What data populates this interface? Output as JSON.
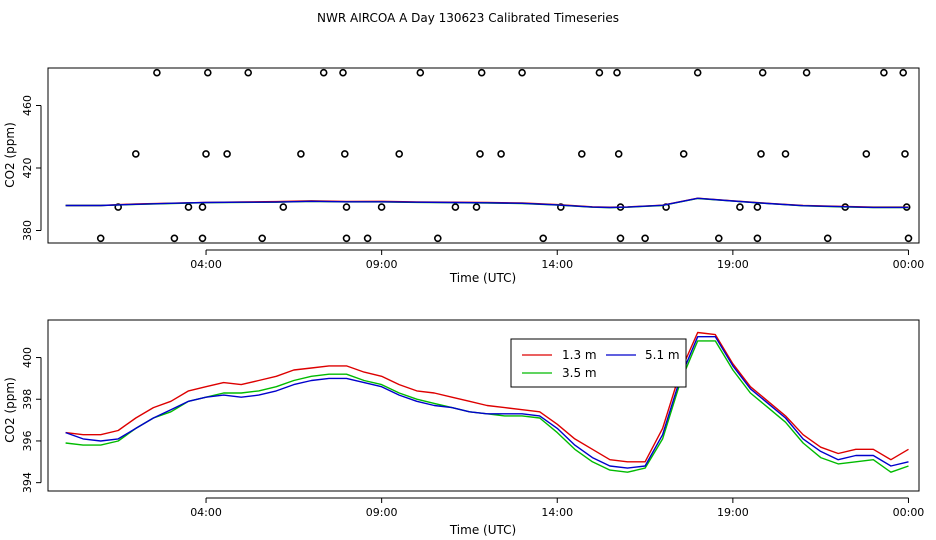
{
  "title": "NWR AIRCOA A  Day 130623  Calibrated Timeseries",
  "colors": {
    "s1": "#dd0000",
    "s2": "#00bb00",
    "s3": "#0000cc",
    "axis": "#000000"
  },
  "chart_data": [
    {
      "type": "scatter",
      "ylabel": "CO2 (ppm)",
      "xlabel": "Time (UTC)",
      "xlim": [
        -0.5,
        24.3
      ],
      "ylim": [
        372,
        484
      ],
      "xticks": [
        4,
        9,
        14,
        19,
        24
      ],
      "xtick_labels": [
        "04:00",
        "09:00",
        "14:00",
        "19:00",
        "00:00"
      ],
      "yticks": [
        380,
        420,
        460
      ],
      "ytick_labels": [
        "380",
        "420",
        "460"
      ],
      "points": [
        [
          1.0,
          375
        ],
        [
          1.5,
          395
        ],
        [
          2.0,
          429
        ],
        [
          2.6,
          481
        ],
        [
          3.1,
          375
        ],
        [
          3.5,
          395
        ],
        [
          3.9,
          375
        ],
        [
          3.9,
          395
        ],
        [
          4.0,
          429
        ],
        [
          4.05,
          481
        ],
        [
          4.6,
          429
        ],
        [
          5.2,
          481
        ],
        [
          5.6,
          375
        ],
        [
          6.2,
          395
        ],
        [
          6.7,
          429
        ],
        [
          7.35,
          481
        ],
        [
          7.9,
          481
        ],
        [
          7.95,
          429
        ],
        [
          8.0,
          395
        ],
        [
          8.0,
          375
        ],
        [
          8.6,
          375
        ],
        [
          9.0,
          395
        ],
        [
          9.5,
          429
        ],
        [
          10.1,
          481
        ],
        [
          10.6,
          375
        ],
        [
          11.1,
          395
        ],
        [
          11.7,
          395
        ],
        [
          11.8,
          429
        ],
        [
          11.85,
          481
        ],
        [
          12.4,
          429
        ],
        [
          13.0,
          481
        ],
        [
          13.6,
          375
        ],
        [
          14.1,
          395
        ],
        [
          14.7,
          429
        ],
        [
          15.2,
          481
        ],
        [
          15.7,
          481
        ],
        [
          15.75,
          429
        ],
        [
          15.8,
          395
        ],
        [
          15.8,
          375
        ],
        [
          16.5,
          375
        ],
        [
          17.1,
          395
        ],
        [
          17.6,
          429
        ],
        [
          18.0,
          481
        ],
        [
          18.6,
          375
        ],
        [
          19.2,
          395
        ],
        [
          19.7,
          375
        ],
        [
          19.7,
          395
        ],
        [
          19.8,
          429
        ],
        [
          19.85,
          481
        ],
        [
          20.5,
          429
        ],
        [
          21.1,
          481
        ],
        [
          21.7,
          375
        ],
        [
          22.2,
          395
        ],
        [
          22.8,
          429
        ],
        [
          23.3,
          481
        ],
        [
          23.85,
          481
        ],
        [
          23.9,
          429
        ],
        [
          23.95,
          395
        ],
        [
          24.0,
          375
        ]
      ],
      "series": [
        {
          "name": "1.3 m",
          "color": "#dd0000",
          "x": [
            0,
            1,
            2,
            3,
            4,
            5,
            6,
            7,
            8,
            9,
            10,
            11,
            12,
            13,
            14,
            15,
            15.5,
            16,
            17,
            18,
            19,
            20,
            21,
            22,
            23,
            24
          ],
          "y": [
            396,
            396,
            397,
            397.5,
            398,
            398.3,
            398.5,
            399,
            398.6,
            398.7,
            398.3,
            398.1,
            397.9,
            397.6,
            396.6,
            395.2,
            394.9,
            395.1,
            396.2,
            400.7,
            399,
            397.4,
            396,
            395.5,
            395,
            395
          ]
        },
        {
          "name": "3.5 m",
          "color": "#00bb00",
          "x": [
            0,
            1,
            2,
            3,
            4,
            5,
            6,
            7,
            8,
            9,
            10,
            11,
            12,
            13,
            14,
            15,
            15.5,
            16,
            17,
            18,
            19,
            20,
            21,
            22,
            23,
            24
          ],
          "y": [
            396,
            396,
            396.7,
            397.3,
            397.8,
            398,
            398.1,
            398.6,
            398.3,
            398.3,
            398,
            397.8,
            397.6,
            397.3,
            396.3,
            394.9,
            394.6,
            394.9,
            396,
            400.5,
            398.8,
            397.2,
            395.8,
            395.2,
            394.7,
            394.7
          ]
        },
        {
          "name": "5.1 m",
          "color": "#0000cc",
          "x": [
            0,
            1,
            2,
            3,
            4,
            5,
            6,
            7,
            8,
            9,
            10,
            11,
            12,
            13,
            14,
            15,
            15.5,
            16,
            17,
            18,
            19,
            20,
            21,
            22,
            23,
            24
          ],
          "y": [
            396,
            396,
            396.8,
            397.4,
            397.9,
            398.1,
            398.2,
            398.7,
            398.4,
            398.4,
            398.1,
            397.9,
            397.7,
            397.4,
            396.4,
            395,
            394.7,
            395,
            396.1,
            400.6,
            398.9,
            397.3,
            395.9,
            395.3,
            394.8,
            394.8
          ]
        }
      ]
    },
    {
      "type": "line",
      "ylabel": "CO2 (ppm)",
      "xlabel": "Time (UTC)",
      "xlim": [
        -0.5,
        24.3
      ],
      "ylim": [
        393.6,
        401.8
      ],
      "xticks": [
        4,
        9,
        14,
        19,
        24
      ],
      "xtick_labels": [
        "04:00",
        "09:00",
        "14:00",
        "19:00",
        "00:00"
      ],
      "yticks": [
        394,
        396,
        398,
        400
      ],
      "ytick_labels": [
        "394",
        "396",
        "398",
        "400"
      ],
      "legend": "top-center",
      "series": [
        {
          "name": "1.3 m",
          "color": "#dd0000",
          "x": [
            0,
            0.5,
            1,
            1.5,
            2,
            2.5,
            3,
            3.5,
            4,
            4.5,
            5,
            5.5,
            6,
            6.5,
            7,
            7.5,
            8,
            8.5,
            9,
            9.5,
            10,
            10.5,
            11,
            11.5,
            12,
            12.5,
            13,
            13.5,
            14,
            14.5,
            15,
            15.5,
            16,
            16.5,
            17,
            17.5,
            18,
            18.5,
            19,
            19.5,
            20,
            20.5,
            21,
            21.5,
            22,
            22.5,
            23,
            23.5,
            24
          ],
          "y": [
            396.4,
            396.3,
            396.3,
            396.5,
            397.1,
            397.6,
            397.9,
            398.4,
            398.6,
            398.8,
            398.7,
            398.9,
            399.1,
            399.4,
            399.5,
            399.6,
            399.6,
            399.3,
            399.1,
            398.7,
            398.4,
            398.3,
            398.1,
            397.9,
            397.7,
            397.6,
            397.5,
            397.4,
            396.8,
            396.1,
            395.6,
            395.1,
            395.0,
            395.0,
            396.6,
            399.3,
            401.2,
            401.1,
            399.7,
            398.6,
            397.9,
            397.2,
            396.3,
            395.7,
            395.4,
            395.6,
            395.6,
            395.1,
            395.6
          ]
        },
        {
          "name": "3.5 m",
          "color": "#00bb00",
          "x": [
            0,
            0.5,
            1,
            1.5,
            2,
            2.5,
            3,
            3.5,
            4,
            4.5,
            5,
            5.5,
            6,
            6.5,
            7,
            7.5,
            8,
            8.5,
            9,
            9.5,
            10,
            10.5,
            11,
            11.5,
            12,
            12.5,
            13,
            13.5,
            14,
            14.5,
            15,
            15.5,
            16,
            16.5,
            17,
            17.5,
            18,
            18.5,
            19,
            19.5,
            20,
            20.5,
            21,
            21.5,
            22,
            22.5,
            23,
            23.5,
            24
          ],
          "y": [
            395.9,
            395.8,
            395.8,
            396.0,
            396.6,
            397.1,
            397.4,
            397.9,
            398.1,
            398.3,
            398.3,
            398.4,
            398.6,
            398.9,
            399.1,
            399.2,
            399.2,
            398.9,
            398.7,
            398.3,
            398.0,
            397.8,
            397.6,
            397.4,
            397.3,
            397.2,
            397.2,
            397.1,
            396.4,
            395.6,
            395.0,
            394.6,
            394.5,
            394.7,
            396.1,
            398.8,
            400.8,
            400.8,
            399.4,
            398.3,
            397.6,
            396.9,
            395.9,
            395.2,
            394.9,
            395.0,
            395.1,
            394.5,
            394.8
          ]
        },
        {
          "name": "5.1 m",
          "color": "#0000cc",
          "x": [
            0,
            0.5,
            1,
            1.5,
            2,
            2.5,
            3,
            3.5,
            4,
            4.5,
            5,
            5.5,
            6,
            6.5,
            7,
            7.5,
            8,
            8.5,
            9,
            9.5,
            10,
            10.5,
            11,
            11.5,
            12,
            12.5,
            13,
            13.5,
            14,
            14.5,
            15,
            15.5,
            16,
            16.5,
            17,
            17.5,
            18,
            18.5,
            19,
            19.5,
            20,
            20.5,
            21,
            21.5,
            22,
            22.5,
            23,
            23.5,
            24
          ],
          "y": [
            396.4,
            396.1,
            396.0,
            396.1,
            396.6,
            397.1,
            397.5,
            397.9,
            398.1,
            398.2,
            398.1,
            398.2,
            398.4,
            398.7,
            398.9,
            399.0,
            399.0,
            398.8,
            398.6,
            398.2,
            397.9,
            397.7,
            397.6,
            397.4,
            397.3,
            397.3,
            397.3,
            397.2,
            396.6,
            395.8,
            395.2,
            394.8,
            394.7,
            394.8,
            396.3,
            399.0,
            401.0,
            401.0,
            399.6,
            398.5,
            397.8,
            397.1,
            396.1,
            395.5,
            395.1,
            395.3,
            395.3,
            394.8,
            395.0
          ]
        }
      ]
    }
  ]
}
